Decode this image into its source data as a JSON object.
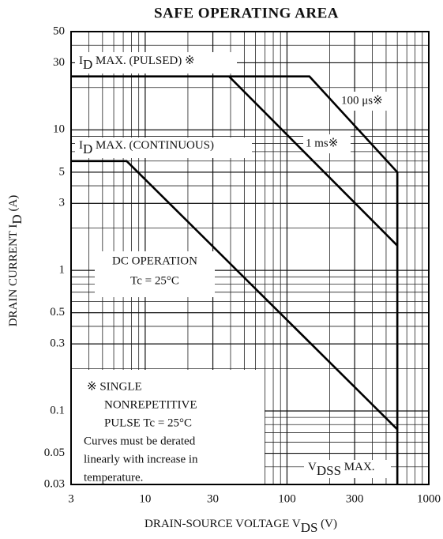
{
  "chart_data": {
    "type": "line",
    "title": "SAFE OPERATING AREA",
    "x_label": {
      "text": "DRAIN-SOURCE VOLTAGE  V",
      "sub": "DS",
      "rest": "  (V)"
    },
    "y_label": {
      "text": "DRAIN CURRENT  I",
      "sub": "D",
      "rest": "  (A)"
    },
    "xscale": "log",
    "yscale": "log",
    "grid": true,
    "xlim": [
      3,
      1000
    ],
    "ylim": [
      0.03,
      50
    ],
    "xticks": [
      3,
      10,
      30,
      100,
      300,
      1000
    ],
    "yticks": [
      0.03,
      0.05,
      0.1,
      0.3,
      0.5,
      1,
      3,
      5,
      10,
      30,
      50
    ],
    "color": "#000000",
    "series": [
      {
        "name": "100 μs※",
        "x": [
          3,
          144,
          600,
          600
        ],
        "values": [
          24,
          24,
          5,
          0.03
        ]
      },
      {
        "name": "1 ms※",
        "x": [
          39,
          600
        ],
        "values": [
          24,
          1.5
        ]
      },
      {
        "name": "DC OPERATION",
        "x": [
          3,
          7.4,
          600
        ],
        "values": [
          6,
          6,
          0.074
        ]
      }
    ],
    "annotations": {
      "pulsed": {
        "text": "I",
        "sub": "D",
        "rest": " MAX. (PULSED) ※"
      },
      "continuous": {
        "text": "I",
        "sub": "D",
        "rest": " MAX. (CONTINUOUS)"
      },
      "dc_condition": "Tc = 25°C",
      "vdss": {
        "text": "V",
        "sub": "DSS",
        "rest": " MAX."
      },
      "note": [
        "※ SINGLE",
        "NONREPETITIVE",
        "PULSE    Tc = 25°C",
        "Curves must be derated",
        "linearly with increase in",
        "temperature."
      ]
    }
  }
}
